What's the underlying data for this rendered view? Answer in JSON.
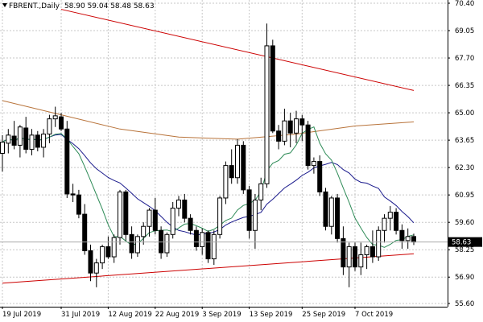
{
  "header": {
    "symbol": "FBRENT.,Daily",
    "ohlc": "58.90 59.04 58.48 58.63"
  },
  "chart_data": {
    "type": "candlestick",
    "symbol": "FBRENT.",
    "timeframe": "Daily",
    "ylim": [
      55.6,
      70.4
    ],
    "y_ticks": [
      70.4,
      69.05,
      67.7,
      66.35,
      65.0,
      63.65,
      62.3,
      60.95,
      59.6,
      58.25,
      56.9,
      55.6
    ],
    "x_tick_labels": [
      "19 Jul 2019",
      "31 Jul 2019",
      "12 Aug 2019",
      "22 Aug 2019",
      "3 Sep 2019",
      "13 Sep 2019",
      "25 Sep 2019",
      "7 Oct 2019"
    ],
    "x_tick_indices": [
      0,
      10,
      18,
      26,
      34,
      42,
      51,
      60
    ],
    "current_price": 58.63,
    "candles": [
      [
        63.0,
        63.9,
        62.1,
        63.55
      ],
      [
        63.5,
        64.2,
        63.0,
        63.9
      ],
      [
        63.85,
        64.6,
        63.2,
        63.4
      ],
      [
        63.4,
        64.4,
        62.8,
        64.3
      ],
      [
        64.25,
        64.8,
        63.0,
        63.2
      ],
      [
        63.2,
        64.2,
        62.9,
        63.9
      ],
      [
        63.9,
        64.1,
        63.1,
        63.3
      ],
      [
        63.3,
        64.2,
        62.8,
        63.95
      ],
      [
        63.95,
        64.9,
        63.5,
        64.7
      ],
      [
        64.7,
        65.3,
        64.3,
        64.85
      ],
      [
        64.8,
        65.0,
        64.1,
        64.2
      ],
      [
        64.2,
        64.6,
        60.8,
        61.0
      ],
      [
        61.0,
        61.5,
        60.6,
        60.95
      ],
      [
        60.95,
        61.2,
        59.8,
        60.0
      ],
      [
        60.0,
        60.5,
        58.0,
        58.2
      ],
      [
        58.2,
        58.5,
        56.7,
        57.1
      ],
      [
        57.1,
        57.8,
        56.4,
        57.6
      ],
      [
        57.6,
        58.5,
        57.3,
        58.4
      ],
      [
        58.4,
        58.9,
        57.8,
        57.9
      ],
      [
        57.9,
        59.0,
        57.6,
        58.85
      ],
      [
        58.85,
        61.2,
        58.5,
        61.1
      ],
      [
        61.1,
        61.2,
        58.7,
        59.0
      ],
      [
        59.0,
        59.4,
        57.8,
        58.1
      ],
      [
        58.1,
        59.0,
        57.9,
        58.9
      ],
      [
        58.9,
        59.6,
        58.5,
        59.4
      ],
      [
        59.4,
        60.3,
        58.9,
        60.2
      ],
      [
        60.2,
        60.8,
        59.0,
        59.2
      ],
      [
        59.2,
        59.4,
        57.8,
        58.1
      ],
      [
        58.1,
        59.1,
        57.9,
        59.0
      ],
      [
        59.0,
        60.6,
        58.8,
        60.3
      ],
      [
        60.3,
        60.9,
        59.9,
        60.7
      ],
      [
        60.7,
        61.0,
        59.6,
        59.8
      ],
      [
        59.8,
        60.0,
        59.0,
        59.2
      ],
      [
        59.2,
        59.4,
        58.2,
        58.4
      ],
      [
        58.4,
        59.3,
        58.0,
        59.1
      ],
      [
        59.1,
        59.2,
        57.6,
        57.8
      ],
      [
        57.8,
        59.2,
        57.5,
        59.0
      ],
      [
        59.0,
        60.9,
        58.8,
        60.8
      ],
      [
        60.8,
        62.6,
        60.5,
        62.4
      ],
      [
        62.4,
        63.2,
        61.5,
        61.8
      ],
      [
        61.8,
        63.7,
        61.5,
        63.4
      ],
      [
        63.4,
        63.6,
        61.0,
        61.2
      ],
      [
        61.2,
        61.4,
        58.8,
        59.2
      ],
      [
        59.2,
        61.0,
        58.3,
        60.7
      ],
      [
        60.7,
        61.8,
        60.2,
        61.5
      ],
      [
        61.5,
        69.4,
        61.3,
        68.3
      ],
      [
        68.3,
        68.6,
        64.0,
        64.1
      ],
      [
        64.1,
        64.4,
        63.2,
        63.6
      ],
      [
        63.6,
        65.2,
        63.4,
        64.6
      ],
      [
        64.6,
        65.0,
        63.3,
        64.0
      ],
      [
        64.0,
        65.1,
        63.5,
        64.7
      ],
      [
        64.7,
        64.9,
        63.6,
        64.4
      ],
      [
        64.4,
        64.6,
        62.2,
        62.4
      ],
      [
        62.4,
        62.8,
        62.0,
        62.6
      ],
      [
        62.6,
        62.9,
        60.9,
        61.1
      ],
      [
        61.1,
        61.3,
        59.2,
        59.4
      ],
      [
        59.4,
        60.9,
        59.0,
        60.8
      ],
      [
        60.8,
        61.0,
        58.6,
        58.8
      ],
      [
        58.8,
        59.4,
        57.0,
        57.4
      ],
      [
        57.4,
        58.6,
        56.4,
        58.4
      ],
      [
        58.4,
        58.6,
        57.2,
        57.4
      ],
      [
        57.4,
        58.6,
        57.0,
        58.0
      ],
      [
        58.0,
        58.5,
        57.3,
        58.4
      ],
      [
        58.4,
        59.2,
        57.6,
        57.9
      ],
      [
        57.9,
        59.4,
        57.7,
        59.2
      ],
      [
        59.2,
        60.0,
        58.6,
        59.8
      ],
      [
        59.8,
        60.4,
        59.2,
        60.1
      ],
      [
        60.1,
        60.3,
        59.0,
        59.2
      ],
      [
        59.2,
        59.5,
        58.3,
        58.7
      ],
      [
        58.7,
        59.3,
        58.3,
        58.9
      ],
      [
        58.9,
        59.04,
        58.48,
        58.63
      ]
    ],
    "overlays": {
      "sma_fast_color": "#2e8b57",
      "sma_mid_color": "#1a1a8c",
      "sma_slow_color": "#b8733a",
      "trendline_color": "#cc0000"
    },
    "trendlines": [
      {
        "name": "upper",
        "from": [
          10,
          70.1
        ],
        "to": [
          70,
          66.1
        ]
      },
      {
        "name": "lower",
        "from": [
          0,
          56.6
        ],
        "to": [
          70,
          58.05
        ]
      }
    ],
    "slow_ma_points": [
      [
        0,
        65.6
      ],
      [
        10,
        64.9
      ],
      [
        20,
        64.2
      ],
      [
        30,
        63.8
      ],
      [
        40,
        63.7
      ],
      [
        50,
        63.95
      ],
      [
        60,
        64.35
      ],
      [
        70,
        64.55
      ]
    ]
  },
  "colors": {
    "grid": "#c7c7c7",
    "axis": "#000000",
    "background": "#ffffff",
    "price_line": "#a8a8a8"
  }
}
